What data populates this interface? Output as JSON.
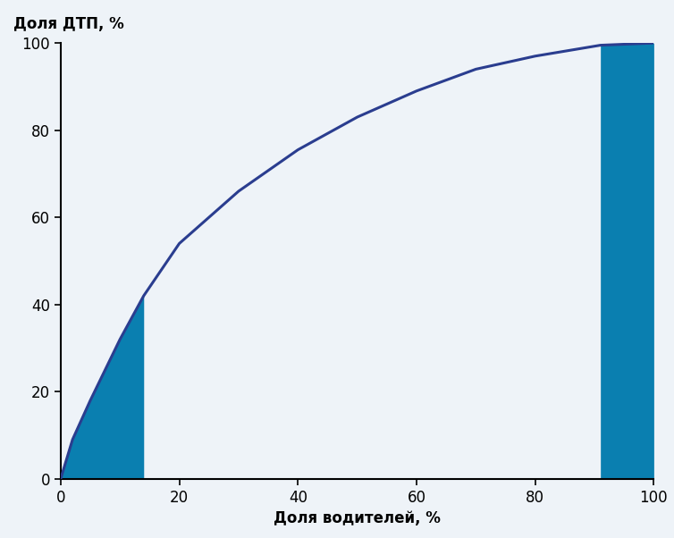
{
  "chart_data": {
    "type": "area",
    "xlabel": "Доля водителей, %",
    "ylabel": "Доля ДТП, %",
    "x": [
      0,
      2,
      5,
      10,
      14,
      20,
      30,
      40,
      50,
      60,
      70,
      80,
      91,
      100
    ],
    "values": [
      0,
      9,
      18,
      32,
      42,
      54,
      66,
      75.5,
      83,
      89,
      94,
      97,
      99.5,
      100
    ],
    "color": "#2a3d8f",
    "highlights": [
      {
        "x": [
          0,
          14
        ],
        "color": "#0a7fb0"
      },
      {
        "x": [
          91,
          100
        ],
        "color": "#0a7fb0"
      }
    ],
    "xlim": [
      0,
      100
    ],
    "xticks": [
      0,
      20,
      40,
      60,
      80,
      100
    ],
    "ylim": [
      0,
      100
    ],
    "yticks": [
      0,
      20,
      40,
      60,
      80,
      100
    ],
    "grid": false
  }
}
